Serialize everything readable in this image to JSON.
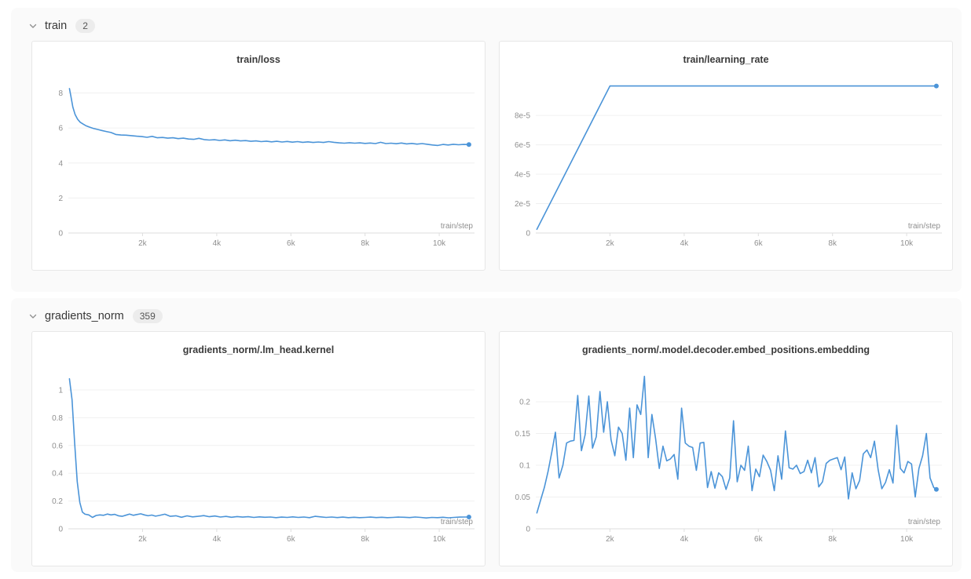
{
  "accent_color": "#4b94d8",
  "sections": [
    {
      "id": "train",
      "title": "train",
      "count": "2"
    },
    {
      "id": "gradients_norm",
      "title": "gradients_norm",
      "count": "359"
    }
  ],
  "chart_data": [
    {
      "type": "line",
      "title": "train/loss",
      "xlabel": "train/step",
      "xlim": [
        0,
        10950
      ],
      "ylim": [
        0,
        8.65
      ],
      "xticks": [
        {
          "v": 2000,
          "label": "2k"
        },
        {
          "v": 4000,
          "label": "4k"
        },
        {
          "v": 6000,
          "label": "6k"
        },
        {
          "v": 8000,
          "label": "8k"
        },
        {
          "v": 10000,
          "label": "10k"
        }
      ],
      "yticks": [
        {
          "v": 0,
          "label": "0"
        },
        {
          "v": 2,
          "label": "2"
        },
        {
          "v": 4,
          "label": "4"
        },
        {
          "v": 6,
          "label": "6"
        },
        {
          "v": 8,
          "label": "8"
        }
      ],
      "line_color": "#4b94d8",
      "end_dot": true,
      "points": [
        [
          30,
          8.25
        ],
        [
          70,
          7.8
        ],
        [
          120,
          7.2
        ],
        [
          180,
          6.78
        ],
        [
          250,
          6.5
        ],
        [
          320,
          6.33
        ],
        [
          400,
          6.22
        ],
        [
          480,
          6.12
        ],
        [
          570,
          6.05
        ],
        [
          670,
          5.98
        ],
        [
          780,
          5.92
        ],
        [
          900,
          5.86
        ],
        [
          1020,
          5.8
        ],
        [
          1150,
          5.74
        ],
        [
          1280,
          5.63
        ],
        [
          1420,
          5.6
        ],
        [
          1560,
          5.59
        ],
        [
          1700,
          5.56
        ],
        [
          1840,
          5.53
        ],
        [
          1980,
          5.51
        ],
        [
          2120,
          5.47
        ],
        [
          2260,
          5.52
        ],
        [
          2400,
          5.44
        ],
        [
          2540,
          5.46
        ],
        [
          2680,
          5.42
        ],
        [
          2820,
          5.44
        ],
        [
          2960,
          5.39
        ],
        [
          3100,
          5.42
        ],
        [
          3240,
          5.37
        ],
        [
          3380,
          5.35
        ],
        [
          3520,
          5.41
        ],
        [
          3660,
          5.34
        ],
        [
          3800,
          5.31
        ],
        [
          3940,
          5.33
        ],
        [
          4080,
          5.29
        ],
        [
          4220,
          5.32
        ],
        [
          4360,
          5.27
        ],
        [
          4500,
          5.3
        ],
        [
          4640,
          5.26
        ],
        [
          4780,
          5.28
        ],
        [
          4920,
          5.24
        ],
        [
          5060,
          5.26
        ],
        [
          5200,
          5.22
        ],
        [
          5340,
          5.25
        ],
        [
          5480,
          5.21
        ],
        [
          5620,
          5.24
        ],
        [
          5760,
          5.2
        ],
        [
          5900,
          5.23
        ],
        [
          6040,
          5.19
        ],
        [
          6180,
          5.22
        ],
        [
          6320,
          5.18
        ],
        [
          6460,
          5.21
        ],
        [
          6600,
          5.17
        ],
        [
          6740,
          5.2
        ],
        [
          6880,
          5.17
        ],
        [
          7020,
          5.22
        ],
        [
          7160,
          5.18
        ],
        [
          7300,
          5.15
        ],
        [
          7440,
          5.13
        ],
        [
          7580,
          5.16
        ],
        [
          7720,
          5.13
        ],
        [
          7860,
          5.15
        ],
        [
          8000,
          5.12
        ],
        [
          8140,
          5.14
        ],
        [
          8280,
          5.11
        ],
        [
          8420,
          5.18
        ],
        [
          8560,
          5.11
        ],
        [
          8700,
          5.13
        ],
        [
          8840,
          5.1
        ],
        [
          8980,
          5.14
        ],
        [
          9120,
          5.09
        ],
        [
          9260,
          5.12
        ],
        [
          9400,
          5.08
        ],
        [
          9540,
          5.11
        ],
        [
          9680,
          5.07
        ],
        [
          9820,
          5.03
        ],
        [
          9960,
          5.0
        ],
        [
          10100,
          5.06
        ],
        [
          10240,
          5.03
        ],
        [
          10380,
          5.07
        ],
        [
          10520,
          5.04
        ],
        [
          10660,
          5.06
        ],
        [
          10800,
          5.05
        ]
      ]
    },
    {
      "type": "line",
      "title": "train/learning_rate",
      "xlabel": "train/step",
      "xlim": [
        0,
        10950
      ],
      "ylim": [
        0,
        0.000103
      ],
      "xticks": [
        {
          "v": 2000,
          "label": "2k"
        },
        {
          "v": 4000,
          "label": "4k"
        },
        {
          "v": 6000,
          "label": "6k"
        },
        {
          "v": 8000,
          "label": "8k"
        },
        {
          "v": 10000,
          "label": "10k"
        }
      ],
      "yticks": [
        {
          "v": 0,
          "label": "0"
        },
        {
          "v": 2e-05,
          "label": "2e-5"
        },
        {
          "v": 4e-05,
          "label": "4e-5"
        },
        {
          "v": 6e-05,
          "label": "6e-5"
        },
        {
          "v": 8e-05,
          "label": "8e-5"
        }
      ],
      "line_color": "#4b94d8",
      "end_dot": true,
      "points": [
        [
          30,
          2.5e-06
        ],
        [
          2000,
          0.0001
        ],
        [
          10800,
          0.0001
        ]
      ]
    },
    {
      "type": "line",
      "title": "gradients_norm/.lm_head.kernel",
      "xlabel": "train/step",
      "xlim": [
        0,
        10950
      ],
      "ylim": [
        0,
        1.13
      ],
      "xticks": [
        {
          "v": 2000,
          "label": "2k"
        },
        {
          "v": 4000,
          "label": "4k"
        },
        {
          "v": 6000,
          "label": "6k"
        },
        {
          "v": 8000,
          "label": "8k"
        },
        {
          "v": 10000,
          "label": "10k"
        }
      ],
      "yticks": [
        {
          "v": 0,
          "label": "0"
        },
        {
          "v": 0.2,
          "label": "0.2"
        },
        {
          "v": 0.4,
          "label": "0.4"
        },
        {
          "v": 0.6,
          "label": "0.6"
        },
        {
          "v": 0.8,
          "label": "0.8"
        },
        {
          "v": 1,
          "label": "1"
        }
      ],
      "line_color": "#4b94d8",
      "end_dot": true,
      "points": [
        [
          30,
          1.08
        ],
        [
          100,
          0.93
        ],
        [
          170,
          0.62
        ],
        [
          240,
          0.34
        ],
        [
          310,
          0.19
        ],
        [
          380,
          0.12
        ],
        [
          450,
          0.105
        ],
        [
          550,
          0.1
        ],
        [
          650,
          0.082
        ],
        [
          750,
          0.096
        ],
        [
          850,
          0.1
        ],
        [
          950,
          0.097
        ],
        [
          1050,
          0.106
        ],
        [
          1150,
          0.1
        ],
        [
          1250,
          0.104
        ],
        [
          1350,
          0.094
        ],
        [
          1450,
          0.09
        ],
        [
          1550,
          0.098
        ],
        [
          1650,
          0.106
        ],
        [
          1750,
          0.097
        ],
        [
          1850,
          0.103
        ],
        [
          1950,
          0.108
        ],
        [
          2050,
          0.1
        ],
        [
          2150,
          0.094
        ],
        [
          2250,
          0.099
        ],
        [
          2350,
          0.091
        ],
        [
          2450,
          0.096
        ],
        [
          2600,
          0.105
        ],
        [
          2750,
          0.09
        ],
        [
          2900,
          0.094
        ],
        [
          3050,
          0.083
        ],
        [
          3200,
          0.093
        ],
        [
          3350,
          0.086
        ],
        [
          3500,
          0.09
        ],
        [
          3650,
          0.095
        ],
        [
          3800,
          0.087
        ],
        [
          3950,
          0.092
        ],
        [
          4100,
          0.085
        ],
        [
          4250,
          0.089
        ],
        [
          4400,
          0.083
        ],
        [
          4550,
          0.088
        ],
        [
          4700,
          0.084
        ],
        [
          4850,
          0.087
        ],
        [
          5000,
          0.082
        ],
        [
          5150,
          0.086
        ],
        [
          5300,
          0.083
        ],
        [
          5450,
          0.085
        ],
        [
          5600,
          0.08
        ],
        [
          5750,
          0.084
        ],
        [
          5900,
          0.082
        ],
        [
          6050,
          0.086
        ],
        [
          6200,
          0.082
        ],
        [
          6350,
          0.085
        ],
        [
          6500,
          0.08
        ],
        [
          6650,
          0.09
        ],
        [
          6800,
          0.086
        ],
        [
          6950,
          0.082
        ],
        [
          7100,
          0.085
        ],
        [
          7250,
          0.081
        ],
        [
          7400,
          0.084
        ],
        [
          7550,
          0.08
        ],
        [
          7700,
          0.083
        ],
        [
          7850,
          0.08
        ],
        [
          8000,
          0.082
        ],
        [
          8150,
          0.084
        ],
        [
          8300,
          0.081
        ],
        [
          8450,
          0.083
        ],
        [
          8600,
          0.08
        ],
        [
          8750,
          0.082
        ],
        [
          8900,
          0.084
        ],
        [
          9050,
          0.083
        ],
        [
          9200,
          0.081
        ],
        [
          9350,
          0.085
        ],
        [
          9500,
          0.082
        ],
        [
          9650,
          0.078
        ],
        [
          9800,
          0.082
        ],
        [
          9950,
          0.08
        ],
        [
          10100,
          0.083
        ],
        [
          10250,
          0.079
        ],
        [
          10400,
          0.082
        ],
        [
          10550,
          0.084
        ],
        [
          10700,
          0.085
        ],
        [
          10800,
          0.085
        ]
      ]
    },
    {
      "type": "line",
      "title": "gradients_norm/.model.decoder.embed_positions.embedding",
      "xlabel": "train/step",
      "xlim": [
        0,
        10950
      ],
      "ylim": [
        0,
        0.247
      ],
      "xticks": [
        {
          "v": 2000,
          "label": "2k"
        },
        {
          "v": 4000,
          "label": "4k"
        },
        {
          "v": 6000,
          "label": "6k"
        },
        {
          "v": 8000,
          "label": "8k"
        },
        {
          "v": 10000,
          "label": "10k"
        }
      ],
      "yticks": [
        {
          "v": 0,
          "label": "0"
        },
        {
          "v": 0.05,
          "label": "0.05"
        },
        {
          "v": 0.1,
          "label": "0.1"
        },
        {
          "v": 0.15,
          "label": "0.15"
        },
        {
          "v": 0.2,
          "label": "0.2"
        }
      ],
      "line_color": "#4b94d8",
      "end_dot": true,
      "points": [
        [
          30,
          0.025
        ],
        [
          130,
          0.045
        ],
        [
          230,
          0.065
        ],
        [
          330,
          0.09
        ],
        [
          430,
          0.12
        ],
        [
          530,
          0.152
        ],
        [
          630,
          0.08
        ],
        [
          730,
          0.1
        ],
        [
          830,
          0.135
        ],
        [
          930,
          0.138
        ],
        [
          1030,
          0.139
        ],
        [
          1130,
          0.21
        ],
        [
          1230,
          0.123
        ],
        [
          1330,
          0.148
        ],
        [
          1430,
          0.209
        ],
        [
          1530,
          0.127
        ],
        [
          1630,
          0.145
        ],
        [
          1730,
          0.216
        ],
        [
          1830,
          0.152
        ],
        [
          1930,
          0.2
        ],
        [
          2030,
          0.14
        ],
        [
          2130,
          0.115
        ],
        [
          2230,
          0.16
        ],
        [
          2330,
          0.15
        ],
        [
          2430,
          0.108
        ],
        [
          2530,
          0.19
        ],
        [
          2630,
          0.112
        ],
        [
          2730,
          0.195
        ],
        [
          2830,
          0.18
        ],
        [
          2930,
          0.24
        ],
        [
          3030,
          0.112
        ],
        [
          3130,
          0.18
        ],
        [
          3230,
          0.142
        ],
        [
          3330,
          0.095
        ],
        [
          3430,
          0.13
        ],
        [
          3530,
          0.107
        ],
        [
          3630,
          0.11
        ],
        [
          3730,
          0.117
        ],
        [
          3830,
          0.078
        ],
        [
          3930,
          0.19
        ],
        [
          4030,
          0.135
        ],
        [
          4130,
          0.13
        ],
        [
          4230,
          0.128
        ],
        [
          4330,
          0.092
        ],
        [
          4430,
          0.135
        ],
        [
          4530,
          0.136
        ],
        [
          4630,
          0.065
        ],
        [
          4730,
          0.09
        ],
        [
          4830,
          0.064
        ],
        [
          4930,
          0.088
        ],
        [
          5030,
          0.082
        ],
        [
          5130,
          0.062
        ],
        [
          5230,
          0.08
        ],
        [
          5330,
          0.17
        ],
        [
          5430,
          0.074
        ],
        [
          5530,
          0.1
        ],
        [
          5630,
          0.092
        ],
        [
          5730,
          0.13
        ],
        [
          5830,
          0.06
        ],
        [
          5930,
          0.094
        ],
        [
          6030,
          0.082
        ],
        [
          6130,
          0.116
        ],
        [
          6230,
          0.106
        ],
        [
          6330,
          0.092
        ],
        [
          6430,
          0.06
        ],
        [
          6530,
          0.115
        ],
        [
          6630,
          0.078
        ],
        [
          6730,
          0.154
        ],
        [
          6830,
          0.096
        ],
        [
          6930,
          0.094
        ],
        [
          7030,
          0.1
        ],
        [
          7130,
          0.087
        ],
        [
          7230,
          0.09
        ],
        [
          7330,
          0.108
        ],
        [
          7430,
          0.088
        ],
        [
          7530,
          0.112
        ],
        [
          7630,
          0.066
        ],
        [
          7730,
          0.074
        ],
        [
          7830,
          0.103
        ],
        [
          7930,
          0.108
        ],
        [
          8030,
          0.11
        ],
        [
          8130,
          0.112
        ],
        [
          8230,
          0.093
        ],
        [
          8330,
          0.113
        ],
        [
          8430,
          0.047
        ],
        [
          8530,
          0.088
        ],
        [
          8630,
          0.063
        ],
        [
          8730,
          0.076
        ],
        [
          8830,
          0.118
        ],
        [
          8930,
          0.124
        ],
        [
          9030,
          0.112
        ],
        [
          9130,
          0.138
        ],
        [
          9230,
          0.093
        ],
        [
          9330,
          0.063
        ],
        [
          9430,
          0.073
        ],
        [
          9530,
          0.093
        ],
        [
          9630,
          0.072
        ],
        [
          9730,
          0.163
        ],
        [
          9830,
          0.095
        ],
        [
          9930,
          0.088
        ],
        [
          10030,
          0.106
        ],
        [
          10130,
          0.102
        ],
        [
          10230,
          0.05
        ],
        [
          10330,
          0.095
        ],
        [
          10430,
          0.115
        ],
        [
          10530,
          0.15
        ],
        [
          10630,
          0.08
        ],
        [
          10730,
          0.065
        ],
        [
          10800,
          0.062
        ]
      ]
    }
  ]
}
